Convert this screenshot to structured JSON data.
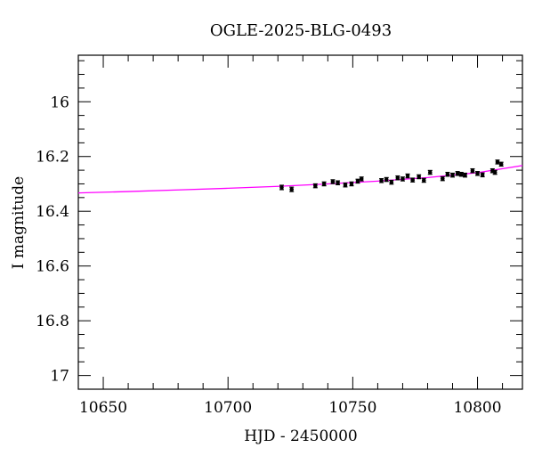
{
  "chart_data": {
    "type": "scatter",
    "title": "OGLE-2025-BLG-0493",
    "xlabel": "HJD - 2450000",
    "ylabel": "I magnitude",
    "xlim": [
      10640,
      10818
    ],
    "ylim": [
      17.05,
      15.83
    ],
    "y_inverted": true,
    "x_ticks": [
      10650,
      10700,
      10750,
      10800
    ],
    "x_tick_labels": [
      "10650",
      "10700",
      "10750",
      "10800"
    ],
    "y_ticks": [
      16,
      16.2,
      16.4,
      16.6,
      16.8,
      17
    ],
    "y_tick_labels": [
      "16",
      "16.2",
      "16.4",
      "16.6",
      "16.8",
      "17"
    ],
    "grid": false,
    "colors": {
      "points": "#000000",
      "model": "#ff00ff",
      "axes": "#000000"
    },
    "series": [
      {
        "kind": "points-with-errorbars",
        "x": [
          10721.5,
          10725.5,
          10735.0,
          10738.5,
          10742.0,
          10744.0,
          10747.0,
          10749.5,
          10752.0,
          10753.5,
          10761.5,
          10763.5,
          10765.5,
          10768.0,
          10770.0,
          10772.0,
          10774.0,
          10776.5,
          10778.5,
          10781.0,
          10786.0,
          10788.0,
          10790.0,
          10792.0,
          10793.5,
          10795.0,
          10798.0,
          10800.0,
          10802.0,
          10806.0,
          10807.0,
          10808.0,
          10809.5
        ],
        "y": [
          16.313,
          16.32,
          16.307,
          16.3,
          16.292,
          16.296,
          16.304,
          16.3,
          16.29,
          16.282,
          16.288,
          16.284,
          16.294,
          16.278,
          16.282,
          16.271,
          16.286,
          16.274,
          16.287,
          16.258,
          16.281,
          16.265,
          16.268,
          16.262,
          16.265,
          16.268,
          16.252,
          16.262,
          16.267,
          16.252,
          16.258,
          16.22,
          16.228
        ],
        "err": [
          0.008,
          0.008,
          0.007,
          0.007,
          0.007,
          0.007,
          0.007,
          0.007,
          0.007,
          0.007,
          0.007,
          0.007,
          0.007,
          0.007,
          0.007,
          0.007,
          0.007,
          0.007,
          0.007,
          0.007,
          0.007,
          0.007,
          0.007,
          0.007,
          0.007,
          0.007,
          0.007,
          0.007,
          0.007,
          0.007,
          0.007,
          0.007,
          0.007
        ]
      },
      {
        "kind": "model-curve",
        "x": [
          10640,
          10660,
          10680,
          10700,
          10720,
          10740,
          10760,
          10780,
          10800,
          10818
        ],
        "y": [
          16.333,
          16.328,
          16.322,
          16.316,
          16.309,
          16.3,
          16.29,
          16.277,
          16.259,
          16.233
        ]
      }
    ]
  }
}
